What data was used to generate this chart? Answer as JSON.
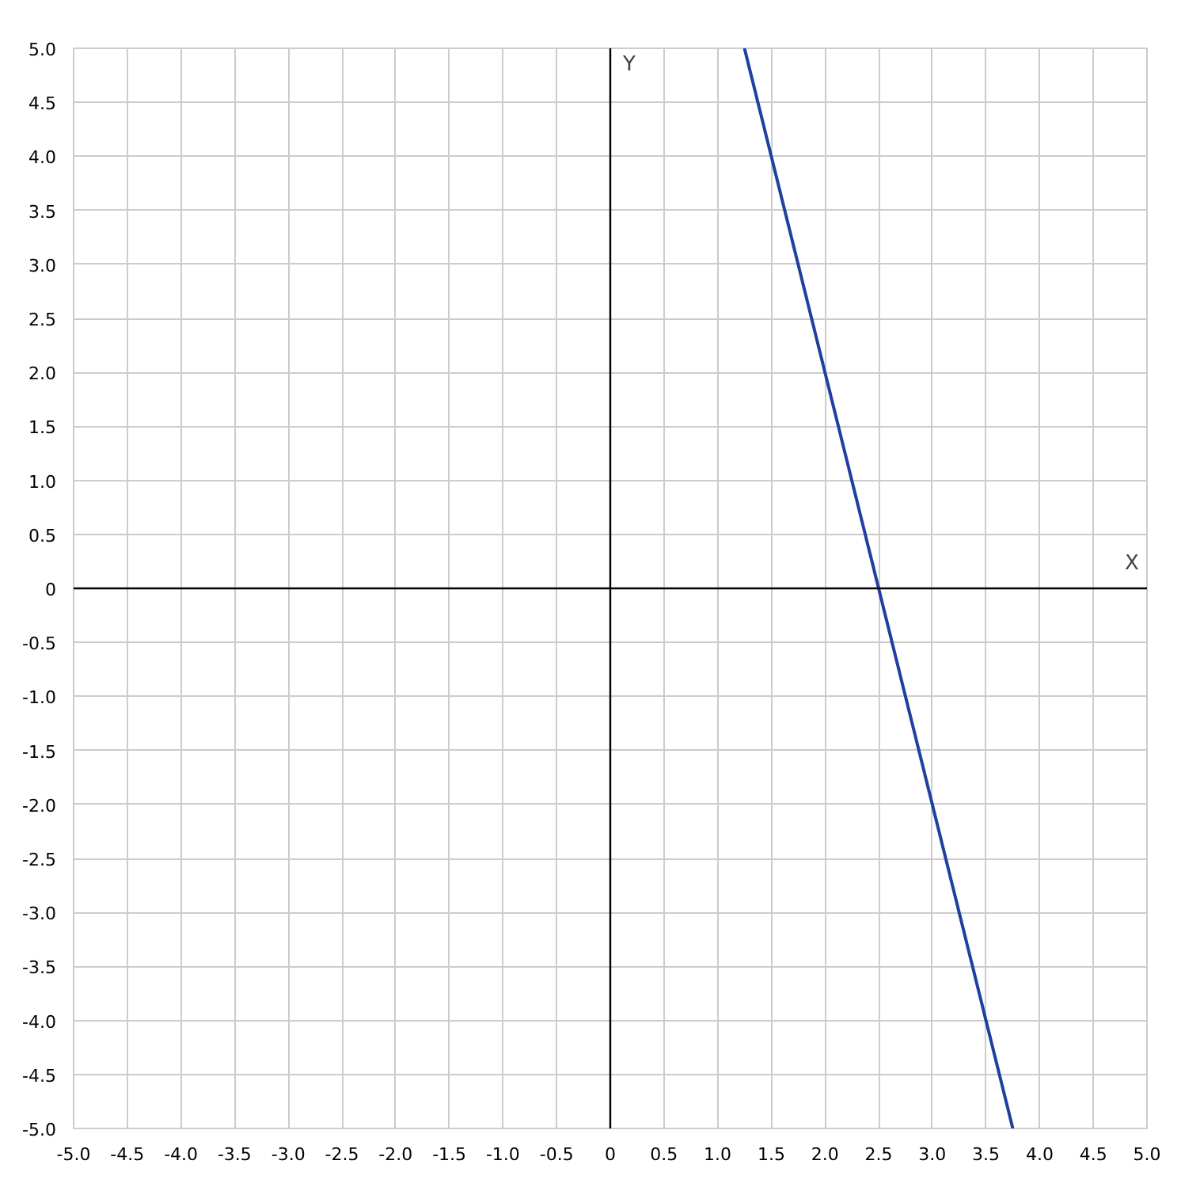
{
  "chart_data": {
    "type": "line",
    "xlabel": "X",
    "ylabel": "Y",
    "x": [
      1.25,
      3.75
    ],
    "series": [
      {
        "color": "#2040a0",
        "values": [
          5,
          -5
        ]
      }
    ],
    "xlim": [
      -5,
      5
    ],
    "ylim": [
      -5,
      5
    ],
    "xticks": [
      {
        "value": -5,
        "label": "-5.0"
      },
      -4.5,
      {
        "value": -4,
        "label": "-4.0"
      },
      -3.5,
      {
        "value": -3,
        "label": "-3.0"
      },
      -2.5,
      {
        "value": -2,
        "label": "-2.0"
      },
      -1.5,
      {
        "value": -1,
        "label": "-1.0"
      },
      -0.5,
      0,
      0.5,
      {
        "value": 1,
        "label": "1.0"
      },
      1.5,
      {
        "value": 2,
        "label": "2.0"
      },
      2.5,
      {
        "value": 3,
        "label": "3.0"
      },
      3.5,
      {
        "value": 4,
        "label": "4.0"
      },
      4.5,
      {
        "value": 5,
        "label": "5.0"
      }
    ],
    "yticks": [
      {
        "value": -5,
        "label": "-5.0"
      },
      -4.5,
      {
        "value": -4,
        "label": "-4.0"
      },
      -3.5,
      {
        "value": -3,
        "label": "-3.0"
      },
      -2.5,
      {
        "value": -2,
        "label": "-2.0"
      },
      -1.5,
      {
        "value": -1,
        "label": "-1.0"
      },
      -0.5,
      0,
      0.5,
      {
        "value": 1,
        "label": "1.0"
      },
      1.5,
      {
        "value": 2,
        "label": "2.0"
      },
      2.5,
      {
        "value": 3,
        "label": "3.0"
      },
      3.5,
      {
        "value": 4,
        "label": "4.0"
      },
      4.5,
      {
        "value": 5,
        "label": "5.0"
      }
    ],
    "grid": true,
    "line_style": "solid"
  }
}
